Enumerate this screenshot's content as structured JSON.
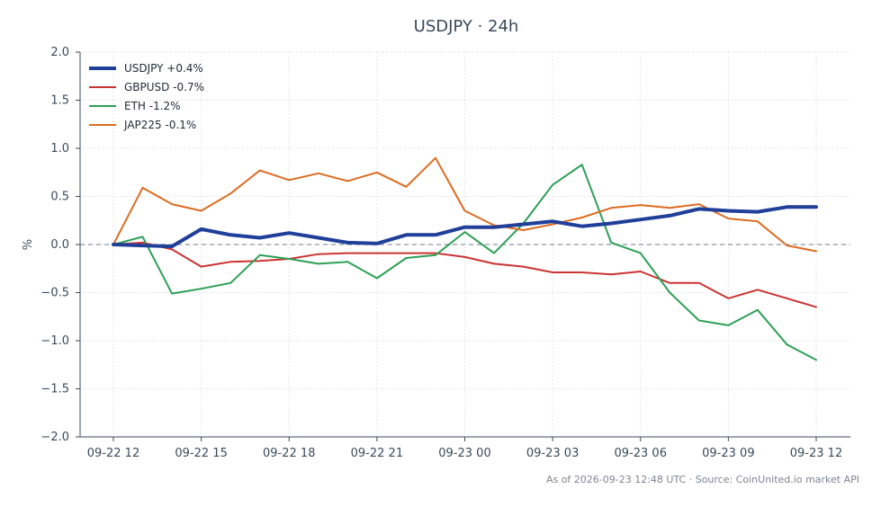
{
  "chart_data": {
    "type": "line",
    "title": "USDJPY · 24h",
    "ylabel": "%",
    "xlabel": "",
    "ylim": [
      -2.0,
      2.0
    ],
    "yticks": [
      "2.0",
      "1.5",
      "1.0",
      "0.5",
      "0.0",
      "−0.5",
      "−1.0",
      "−1.5",
      "−2.0"
    ],
    "ytick_values": [
      2.0,
      1.5,
      1.0,
      0.5,
      0.0,
      -0.5,
      -1.0,
      -1.5,
      -2.0
    ],
    "xticks": [
      "09-22 12",
      "09-22 15",
      "09-22 18",
      "09-22 21",
      "09-23 00",
      "09-23 03",
      "09-23 06",
      "09-23 09",
      "09-23 12"
    ],
    "x": [
      "09-22 12:00",
      "09-22 13:00",
      "09-22 14:00",
      "09-22 15:00",
      "09-22 16:00",
      "09-22 17:00",
      "09-22 18:00",
      "09-22 19:00",
      "09-22 20:00",
      "09-22 21:00",
      "09-22 22:00",
      "09-22 23:00",
      "09-23 00:00",
      "09-23 01:00",
      "09-23 02:00",
      "09-23 03:00",
      "09-23 04:00",
      "09-23 05:00",
      "09-23 06:00",
      "09-23 07:00",
      "09-23 08:00",
      "09-23 09:00",
      "09-23 10:00",
      "09-23 11:00",
      "09-23 12:00"
    ],
    "grid": true,
    "zero_line": true,
    "legend_position": "top-left",
    "series": [
      {
        "name": "USDJPY +0.4%",
        "color": "#1f3f99",
        "width": 4,
        "values": [
          0.0,
          -0.01,
          -0.02,
          0.16,
          0.1,
          0.07,
          0.12,
          0.07,
          0.02,
          0.01,
          0.1,
          0.1,
          0.18,
          0.18,
          0.21,
          0.24,
          0.19,
          0.22,
          0.26,
          0.3,
          0.37,
          0.35,
          0.34,
          0.39,
          0.39
        ]
      },
      {
        "name": "GBPUSD -0.7%",
        "color": "#cc3333",
        "width": 2,
        "values": [
          0.0,
          0.02,
          -0.05,
          -0.23,
          -0.18,
          -0.17,
          -0.15,
          -0.1,
          -0.09,
          -0.09,
          -0.09,
          -0.09,
          -0.13,
          -0.2,
          -0.23,
          -0.29,
          -0.29,
          -0.31,
          -0.28,
          -0.4,
          -0.4,
          -0.56,
          -0.47,
          -0.56,
          -0.65
        ]
      },
      {
        "name": "ETH -1.2%",
        "color": "#2ca055",
        "width": 2,
        "values": [
          0.0,
          0.08,
          -0.51,
          -0.46,
          -0.4,
          -0.11,
          -0.15,
          -0.2,
          -0.18,
          -0.35,
          -0.14,
          -0.11,
          0.13,
          -0.09,
          0.22,
          0.62,
          0.83,
          0.02,
          -0.09,
          -0.5,
          -0.79,
          -0.84,
          -0.68,
          -1.04,
          -1.2
        ]
      },
      {
        "name": "JAP225 -0.1%",
        "color": "#dd6b20",
        "width": 2,
        "values": [
          0.0,
          0.59,
          0.42,
          0.35,
          0.53,
          0.77,
          0.67,
          0.74,
          0.66,
          0.75,
          0.6,
          0.9,
          0.35,
          0.2,
          0.15,
          0.21,
          0.28,
          0.38,
          0.41,
          0.38,
          0.42,
          0.27,
          0.24,
          -0.01,
          -0.07
        ]
      }
    ]
  },
  "footer": "As of 2026-09-23 12:48 UTC · Source: CoinUnited.io market API"
}
